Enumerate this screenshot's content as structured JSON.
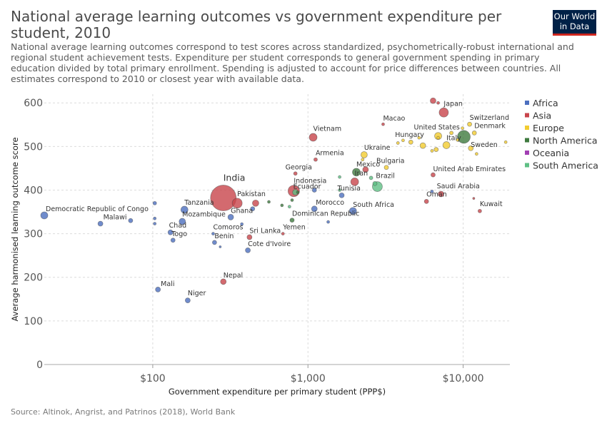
{
  "header": {
    "title": "National average learning outcomes vs government expenditure per student, 2010",
    "subtitle": "National average learning outcomes correspond to test scores across standardized, psychometrically-robust international and\nregional student achievement tests. Expenditure per student corresponds to general government spending in primary\neducation divided by total primary enrollment. Spending is adjusted to account for price differences between countries. All\nestimates correspond to 2010 or closest year with available data.",
    "logo_line1": "Our World",
    "logo_line2": "in Data",
    "source": "Source: Altinok, Angrist, and Patrinos (2018), World Bank"
  },
  "colors": {
    "Africa": "#4c6fbf",
    "Asia": "#c8454b",
    "Europe": "#f2cc30",
    "North America": "#3f7a3f",
    "Oceania": "#a23fb3",
    "South America": "#5fbf85"
  },
  "chart_data": {
    "type": "scatter",
    "xlabel": "Government expenditure per primary student (PPP$)",
    "ylabel": "Average harmonised learning outcome score",
    "xscale": "log",
    "xlim": [
      20,
      20000
    ],
    "ylim": [
      0,
      620
    ],
    "x_ticks": [
      {
        "v": 100,
        "label": "$100"
      },
      {
        "v": 1000,
        "label": "$1,000"
      },
      {
        "v": 10000,
        "label": "$10,000"
      }
    ],
    "y_ticks": [
      {
        "v": 0,
        "label": "0"
      },
      {
        "v": 100,
        "label": "100"
      },
      {
        "v": 200,
        "label": "200"
      },
      {
        "v": 300,
        "label": "300"
      },
      {
        "v": 400,
        "label": "400"
      },
      {
        "v": 500,
        "label": "500"
      },
      {
        "v": 600,
        "label": "600"
      }
    ],
    "grid": true,
    "legend_position": "right",
    "legend": [
      "Africa",
      "Asia",
      "Europe",
      "North America",
      "Oceania",
      "South America"
    ],
    "points": [
      {
        "name": "Democratic Republic of Congo",
        "x": 20,
        "y": 342,
        "region": "Africa",
        "size": 5
      },
      {
        "name": "Malawi",
        "x": 46,
        "y": 323,
        "region": "Africa",
        "size": 3.5
      },
      {
        "name": "",
        "x": 72,
        "y": 330,
        "region": "Africa",
        "size": 3
      },
      {
        "name": "",
        "x": 103,
        "y": 370,
        "region": "Africa",
        "size": 2.5
      },
      {
        "name": "",
        "x": 103,
        "y": 335,
        "region": "Africa",
        "size": 2
      },
      {
        "name": "",
        "x": 103,
        "y": 323,
        "region": "Africa",
        "size": 2
      },
      {
        "name": "Mali",
        "x": 108,
        "y": 172,
        "region": "Africa",
        "size": 3.5
      },
      {
        "name": "Tanzania",
        "x": 160,
        "y": 355,
        "region": "Africa",
        "size": 5
      },
      {
        "name": "Mozambique",
        "x": 155,
        "y": 328,
        "region": "Africa",
        "size": 4.5
      },
      {
        "name": "Chad",
        "x": 130,
        "y": 303,
        "region": "Africa",
        "size": 3.5
      },
      {
        "name": "Togo",
        "x": 135,
        "y": 285,
        "region": "Africa",
        "size": 3
      },
      {
        "name": "Niger",
        "x": 168,
        "y": 147,
        "region": "Africa",
        "size": 3.5
      },
      {
        "name": "Comoros",
        "x": 245,
        "y": 300,
        "region": "Africa",
        "size": 2
      },
      {
        "name": "Benin",
        "x": 250,
        "y": 280,
        "region": "Africa",
        "size": 3
      },
      {
        "name": "Ghana",
        "x": 318,
        "y": 338,
        "region": "Africa",
        "size": 4
      },
      {
        "name": "",
        "x": 375,
        "y": 322,
        "region": "Africa",
        "size": 2
      },
      {
        "name": "",
        "x": 440,
        "y": 357,
        "region": "Africa",
        "size": 3
      },
      {
        "name": "Cote d'Ivoire",
        "x": 410,
        "y": 262,
        "region": "Africa",
        "size": 3.5
      },
      {
        "name": "",
        "x": 272,
        "y": 270,
        "region": "Africa",
        "size": 1.5
      },
      {
        "name": "Morocco",
        "x": 1100,
        "y": 357,
        "region": "Africa",
        "size": 4
      },
      {
        "name": "",
        "x": 1350,
        "y": 327,
        "region": "Africa",
        "size": 2
      },
      {
        "name": "Tunisia",
        "x": 1650,
        "y": 388,
        "region": "Africa",
        "size": 3.5
      },
      {
        "name": "South Africa",
        "x": 1950,
        "y": 352,
        "region": "Africa",
        "size": 5
      },
      {
        "name": "",
        "x": 1100,
        "y": 400,
        "region": "Africa",
        "size": 3
      },
      {
        "name": "",
        "x": 6300,
        "y": 397,
        "region": "Africa",
        "size": 2
      },
      {
        "name": "India",
        "x": 285,
        "y": 382,
        "region": "Asia",
        "size": 18
      },
      {
        "name": "Pakistan",
        "x": 350,
        "y": 370,
        "region": "Asia",
        "size": 7
      },
      {
        "name": "",
        "x": 460,
        "y": 370,
        "region": "Asia",
        "size": 4.5
      },
      {
        "name": "Nepal",
        "x": 285,
        "y": 190,
        "region": "Asia",
        "size": 4
      },
      {
        "name": "Sri Lanka",
        "x": 420,
        "y": 292,
        "region": "Asia",
        "size": 3.5
      },
      {
        "name": "Yemen",
        "x": 690,
        "y": 300,
        "region": "Asia",
        "size": 2
      },
      {
        "name": "Georgia",
        "x": 830,
        "y": 438,
        "region": "Asia",
        "size": 2.5
      },
      {
        "name": "Armenia",
        "x": 1120,
        "y": 470,
        "region": "Asia",
        "size": 2.5
      },
      {
        "name": "Vietnam",
        "x": 1080,
        "y": 521,
        "region": "Asia",
        "size": 5.5
      },
      {
        "name": "Indonesia",
        "x": 810,
        "y": 398,
        "region": "Asia",
        "size": 8
      },
      {
        "name": "Iran",
        "x": 2000,
        "y": 419,
        "region": "Asia",
        "size": 5.5
      },
      {
        "name": "",
        "x": 2350,
        "y": 447,
        "region": "Asia",
        "size": 4
      },
      {
        "name": "Macao",
        "x": 3050,
        "y": 551,
        "region": "Asia",
        "size": 2
      },
      {
        "name": "Japan",
        "x": 7500,
        "y": 578,
        "region": "Asia",
        "size": 6.5
      },
      {
        "name": "",
        "x": 6400,
        "y": 605,
        "region": "Asia",
        "size": 4
      },
      {
        "name": "",
        "x": 6900,
        "y": 600,
        "region": "Asia",
        "size": 2
      },
      {
        "name": "United Arab Emirates",
        "x": 6400,
        "y": 435,
        "region": "Asia",
        "size": 3
      },
      {
        "name": "Saudi Arabia",
        "x": 7200,
        "y": 391,
        "region": "Asia",
        "size": 4
      },
      {
        "name": "Oman",
        "x": 5800,
        "y": 374,
        "region": "Asia",
        "size": 3
      },
      {
        "name": "",
        "x": 11700,
        "y": 381,
        "region": "Asia",
        "size": 1.5
      },
      {
        "name": "Kuwait",
        "x": 12800,
        "y": 352,
        "region": "Asia",
        "size": 2.5
      },
      {
        "name": "Ukraine",
        "x": 2300,
        "y": 481,
        "region": "Europe",
        "size": 4.5
      },
      {
        "name": "Bulgaria",
        "x": 3200,
        "y": 452,
        "region": "Europe",
        "size": 3
      },
      {
        "name": "",
        "x": 2250,
        "y": 470,
        "region": "Europe",
        "size": 2
      },
      {
        "name": "Hungary",
        "x": 4600,
        "y": 510,
        "region": "Europe",
        "size": 3
      },
      {
        "name": "",
        "x": 3800,
        "y": 508,
        "region": "Europe",
        "size": 2
      },
      {
        "name": "",
        "x": 5500,
        "y": 502,
        "region": "Europe",
        "size": 4
      },
      {
        "name": "",
        "x": 5200,
        "y": 520,
        "region": "Europe",
        "size": 2
      },
      {
        "name": "",
        "x": 6300,
        "y": 490,
        "region": "Europe",
        "size": 2
      },
      {
        "name": "",
        "x": 6700,
        "y": 493,
        "region": "Europe",
        "size": 3
      },
      {
        "name": "",
        "x": 6900,
        "y": 520,
        "region": "Europe",
        "size": 2
      },
      {
        "name": "",
        "x": 8400,
        "y": 531,
        "region": "Europe",
        "size": 2.5
      },
      {
        "name": "United States",
        "x": 6900,
        "y": 524,
        "region": "Europe",
        "size": 5
      },
      {
        "name": "Italy",
        "x": 7800,
        "y": 503,
        "region": "Europe",
        "size": 5
      },
      {
        "name": "",
        "x": 9200,
        "y": 515,
        "region": "Europe",
        "size": 2
      },
      {
        "name": "Switzerland",
        "x": 11000,
        "y": 551,
        "region": "Europe",
        "size": 3
      },
      {
        "name": "Denmark",
        "x": 11800,
        "y": 531,
        "region": "Europe",
        "size": 3
      },
      {
        "name": "Sweden",
        "x": 11200,
        "y": 496,
        "region": "Europe",
        "size": 3.5
      },
      {
        "name": "",
        "x": 12200,
        "y": 483,
        "region": "Europe",
        "size": 2
      },
      {
        "name": "",
        "x": 18800,
        "y": 510,
        "region": "Europe",
        "size": 2
      },
      {
        "name": "",
        "x": 4100,
        "y": 514,
        "region": "Europe",
        "size": 2
      },
      {
        "name": "",
        "x": 9900,
        "y": 542,
        "region": "Europe",
        "size": 2
      },
      {
        "name": "Mexico",
        "x": 2050,
        "y": 441,
        "region": "North America",
        "size": 5.5
      },
      {
        "name": "",
        "x": 10100,
        "y": 522,
        "region": "North America",
        "size": 9
      },
      {
        "name": "Dominican Republic",
        "x": 790,
        "y": 331,
        "region": "North America",
        "size": 3
      },
      {
        "name": "",
        "x": 560,
        "y": 373,
        "region": "North America",
        "size": 2
      },
      {
        "name": "",
        "x": 680,
        "y": 365,
        "region": "North America",
        "size": 2
      },
      {
        "name": "",
        "x": 790,
        "y": 377,
        "region": "North America",
        "size": 2
      },
      {
        "name": "",
        "x": 860,
        "y": 395,
        "region": "North America",
        "size": 2
      },
      {
        "name": "Ecuador",
        "x": 830,
        "y": 395,
        "region": "South America",
        "size": 4
      },
      {
        "name": "Brazil",
        "x": 2800,
        "y": 408,
        "region": "South America",
        "size": 7
      },
      {
        "name": "",
        "x": 2550,
        "y": 428,
        "region": "South America",
        "size": 2.5
      },
      {
        "name": "",
        "x": 2700,
        "y": 415,
        "region": "South America",
        "size": 3
      },
      {
        "name": "",
        "x": 1600,
        "y": 430,
        "region": "South America",
        "size": 2
      },
      {
        "name": "",
        "x": 760,
        "y": 362,
        "region": "South America",
        "size": 2
      },
      {
        "name": "",
        "x": 1600,
        "y": 400,
        "region": "South America",
        "size": 2
      }
    ]
  }
}
